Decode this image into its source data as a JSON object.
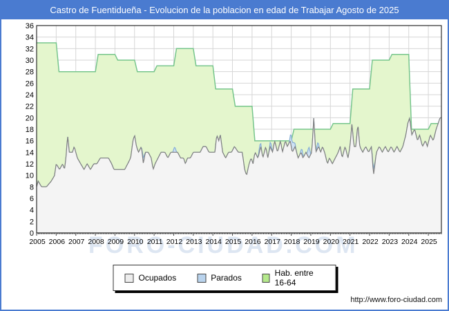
{
  "title_bar": {
    "text": "Castro de Fuentidueña - Evolucion de la poblacion en edad de Trabajar Agosto de 2025"
  },
  "watermark": "FORO-CIUDAD.COM",
  "footer": {
    "url": "http://www.foro-ciudad.com"
  },
  "legend": {
    "items": [
      {
        "label": "Ocupados"
      },
      {
        "label": "Parados"
      },
      {
        "label": "Hab. entre 16-64"
      }
    ]
  },
  "colors": {
    "frame_blue": "#4a7bd0",
    "grid": "#d6d6d6",
    "plot_border": "#000000",
    "axis_text": "#000000",
    "watermark": "#dde6f2",
    "swatch_ocupados": "#ededed",
    "swatch_parados": "#b9d3ed",
    "swatch_hab": "#b5e98c"
  },
  "chart_data": {
    "type": "area",
    "title": "Castro de Fuentidueña - Evolucion de la poblacion en edad de Trabajar Agosto de 2025",
    "xlabel": "",
    "ylabel": "",
    "x_range": [
      2005,
      2025.667
    ],
    "ylim": [
      0,
      36
    ],
    "y_tick_step": 2,
    "grid": true,
    "legend_position": "bottom-center",
    "x_tick_years": [
      2005,
      2006,
      2007,
      2008,
      2009,
      2010,
      2011,
      2012,
      2013,
      2014,
      2015,
      2016,
      2017,
      2018,
      2019,
      2020,
      2021,
      2022,
      2023,
      2024,
      2025
    ],
    "series": [
      {
        "name": "Hab. entre 16-64",
        "style": "yearly-steps",
        "fill": "#e4f6cd",
        "line": "#76c58c",
        "years": [
          2005,
          2006,
          2007,
          2008,
          2009,
          2010,
          2011,
          2012,
          2013,
          2014,
          2015,
          2016,
          2017,
          2018,
          2019,
          2020,
          2021,
          2022,
          2023,
          2024,
          2025
        ],
        "values": [
          33,
          28,
          28,
          31,
          30,
          28,
          29,
          32,
          29,
          25,
          22,
          16,
          16,
          18,
          18,
          19,
          25,
          30,
          31,
          18,
          19
        ]
      },
      {
        "name": "Parados",
        "style": "stacked-above-ocupados",
        "fill": "#cfe1f3",
        "line": "#85aed6",
        "points": [
          [
            2005.0,
            0
          ],
          [
            2010.35,
            0
          ],
          [
            2010.45,
            1
          ],
          [
            2010.55,
            0
          ],
          [
            2011.95,
            0
          ],
          [
            2012.05,
            1
          ],
          [
            2012.15,
            0
          ],
          [
            2016.3,
            0
          ],
          [
            2016.4,
            1
          ],
          [
            2016.5,
            0
          ],
          [
            2016.85,
            0
          ],
          [
            2016.95,
            1
          ],
          [
            2017.05,
            0
          ],
          [
            2017.9,
            0
          ],
          [
            2018.0,
            2
          ],
          [
            2018.15,
            1
          ],
          [
            2018.25,
            0
          ],
          [
            2018.45,
            0
          ],
          [
            2018.55,
            1
          ],
          [
            2018.65,
            0
          ],
          [
            2018.8,
            0
          ],
          [
            2018.9,
            2
          ],
          [
            2019.0,
            0
          ],
          [
            2019.25,
            0
          ],
          [
            2019.35,
            1
          ],
          [
            2019.45,
            0
          ],
          [
            2022.1,
            0
          ],
          [
            2022.2,
            1
          ],
          [
            2022.3,
            0
          ],
          [
            2025.667,
            0
          ]
        ]
      },
      {
        "name": "Ocupados",
        "style": "line-area",
        "fill": "#f4f4f4",
        "line": "#7e7e7e",
        "points": [
          [
            2005.0,
            8
          ],
          [
            2005.08,
            9
          ],
          [
            2005.25,
            8
          ],
          [
            2005.5,
            8
          ],
          [
            2005.75,
            9
          ],
          [
            2005.92,
            10
          ],
          [
            2006.0,
            12
          ],
          [
            2006.17,
            11
          ],
          [
            2006.33,
            12
          ],
          [
            2006.42,
            11
          ],
          [
            2006.5,
            13
          ],
          [
            2006.58,
            17
          ],
          [
            2006.67,
            14
          ],
          [
            2006.83,
            14
          ],
          [
            2006.92,
            15
          ],
          [
            2007.08,
            13
          ],
          [
            2007.25,
            12
          ],
          [
            2007.42,
            11
          ],
          [
            2007.58,
            12
          ],
          [
            2007.75,
            11
          ],
          [
            2007.92,
            12
          ],
          [
            2008.08,
            12
          ],
          [
            2008.25,
            13
          ],
          [
            2008.5,
            13
          ],
          [
            2008.67,
            13
          ],
          [
            2008.83,
            12
          ],
          [
            2008.95,
            11
          ],
          [
            2009.1,
            11
          ],
          [
            2009.3,
            11
          ],
          [
            2009.5,
            11
          ],
          [
            2009.65,
            12
          ],
          [
            2009.8,
            13
          ],
          [
            2009.92,
            16
          ],
          [
            2010.0,
            17
          ],
          [
            2010.1,
            15
          ],
          [
            2010.2,
            14
          ],
          [
            2010.35,
            15
          ],
          [
            2010.45,
            12
          ],
          [
            2010.55,
            14
          ],
          [
            2010.7,
            14
          ],
          [
            2010.85,
            13
          ],
          [
            2010.95,
            11
          ],
          [
            2011.05,
            12
          ],
          [
            2011.2,
            13
          ],
          [
            2011.35,
            14
          ],
          [
            2011.55,
            14
          ],
          [
            2011.7,
            13
          ],
          [
            2011.85,
            14
          ],
          [
            2011.95,
            14
          ],
          [
            2012.05,
            14
          ],
          [
            2012.2,
            14
          ],
          [
            2012.35,
            13
          ],
          [
            2012.5,
            13
          ],
          [
            2012.6,
            12
          ],
          [
            2012.7,
            13
          ],
          [
            2012.85,
            13
          ],
          [
            2013.0,
            14
          ],
          [
            2013.2,
            14
          ],
          [
            2013.35,
            14
          ],
          [
            2013.5,
            15
          ],
          [
            2013.65,
            15
          ],
          [
            2013.8,
            14
          ],
          [
            2013.95,
            14
          ],
          [
            2014.1,
            14
          ],
          [
            2014.2,
            17
          ],
          [
            2014.3,
            16
          ],
          [
            2014.38,
            17
          ],
          [
            2014.5,
            14
          ],
          [
            2014.65,
            13
          ],
          [
            2014.8,
            14
          ],
          [
            2014.95,
            14
          ],
          [
            2015.1,
            15
          ],
          [
            2015.3,
            14
          ],
          [
            2015.5,
            14
          ],
          [
            2015.62,
            11
          ],
          [
            2015.72,
            10
          ],
          [
            2015.85,
            12
          ],
          [
            2015.95,
            13
          ],
          [
            2016.05,
            12
          ],
          [
            2016.15,
            14
          ],
          [
            2016.3,
            13
          ],
          [
            2016.45,
            15
          ],
          [
            2016.55,
            13
          ],
          [
            2016.7,
            15
          ],
          [
            2016.8,
            13
          ],
          [
            2016.92,
            15
          ],
          [
            2017.05,
            14
          ],
          [
            2017.15,
            16
          ],
          [
            2017.3,
            14
          ],
          [
            2017.45,
            16
          ],
          [
            2017.55,
            14
          ],
          [
            2017.7,
            16
          ],
          [
            2017.8,
            15
          ],
          [
            2017.95,
            16
          ],
          [
            2018.05,
            14
          ],
          [
            2018.2,
            15
          ],
          [
            2018.35,
            13
          ],
          [
            2018.5,
            14
          ],
          [
            2018.6,
            13
          ],
          [
            2018.75,
            14
          ],
          [
            2018.9,
            13
          ],
          [
            2019.05,
            14
          ],
          [
            2019.15,
            20
          ],
          [
            2019.25,
            14
          ],
          [
            2019.4,
            15
          ],
          [
            2019.5,
            14
          ],
          [
            2019.6,
            15
          ],
          [
            2019.7,
            14
          ],
          [
            2019.85,
            12
          ],
          [
            2019.95,
            13
          ],
          [
            2020.1,
            12
          ],
          [
            2020.25,
            13
          ],
          [
            2020.4,
            14
          ],
          [
            2020.5,
            15
          ],
          [
            2020.6,
            13
          ],
          [
            2020.75,
            15
          ],
          [
            2020.9,
            13
          ],
          [
            2021.0,
            15
          ],
          [
            2021.1,
            19
          ],
          [
            2021.2,
            15
          ],
          [
            2021.3,
            15
          ],
          [
            2021.4,
            19
          ],
          [
            2021.5,
            15
          ],
          [
            2021.65,
            14
          ],
          [
            2021.8,
            15
          ],
          [
            2021.95,
            14
          ],
          [
            2022.1,
            15
          ],
          [
            2022.2,
            10
          ],
          [
            2022.35,
            14
          ],
          [
            2022.5,
            15
          ],
          [
            2022.65,
            14
          ],
          [
            2022.8,
            15
          ],
          [
            2022.95,
            14
          ],
          [
            2023.1,
            15
          ],
          [
            2023.25,
            14
          ],
          [
            2023.4,
            15
          ],
          [
            2023.55,
            14
          ],
          [
            2023.7,
            15
          ],
          [
            2023.85,
            17
          ],
          [
            2023.95,
            19
          ],
          [
            2024.05,
            20
          ],
          [
            2024.15,
            17
          ],
          [
            2024.3,
            18
          ],
          [
            2024.45,
            16
          ],
          [
            2024.55,
            17
          ],
          [
            2024.7,
            15
          ],
          [
            2024.85,
            16
          ],
          [
            2024.95,
            15
          ],
          [
            2025.1,
            17
          ],
          [
            2025.25,
            16
          ],
          [
            2025.4,
            18
          ],
          [
            2025.5,
            19
          ],
          [
            2025.6,
            20
          ],
          [
            2025.667,
            20
          ]
        ]
      }
    ]
  }
}
